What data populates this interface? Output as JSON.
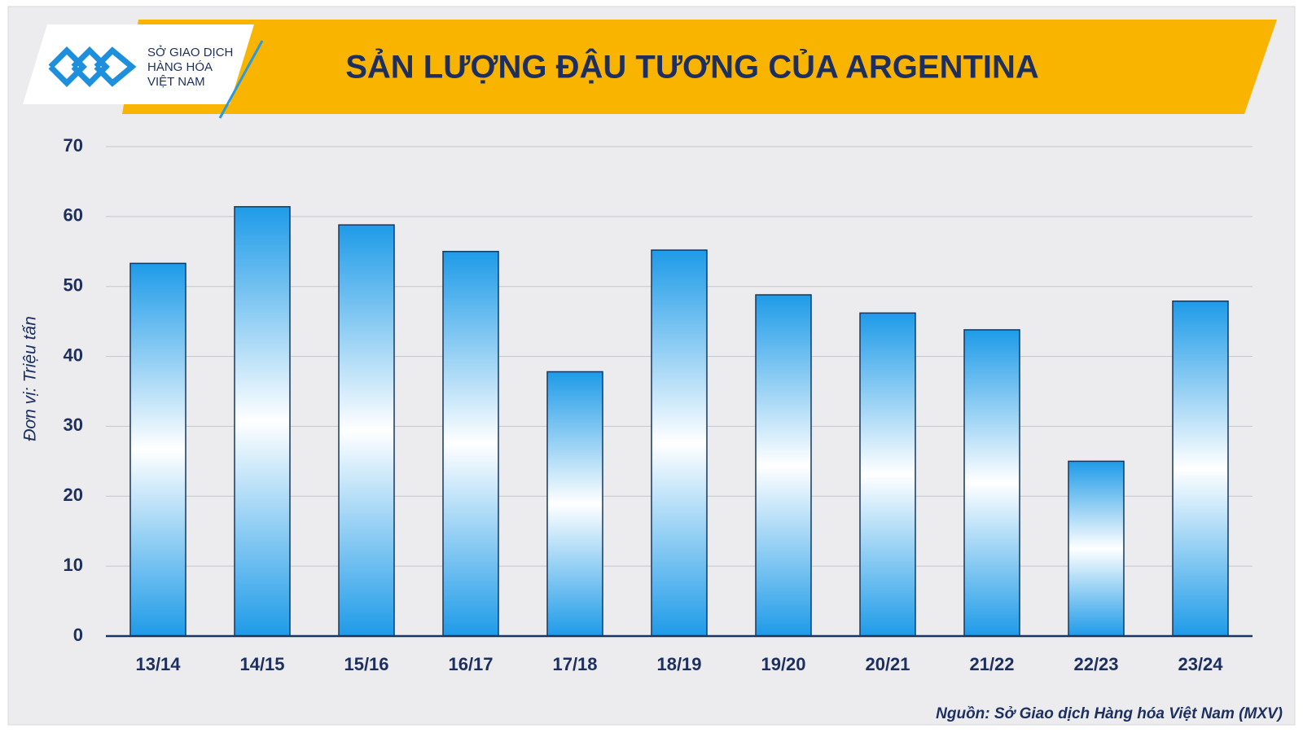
{
  "logo": {
    "lines": [
      "SỞ GIAO DỊCH",
      "HÀNG HÓA",
      "VIỆT NAM"
    ]
  },
  "chart_data": {
    "type": "bar",
    "title": "SẢN LƯỢNG ĐẬU TƯƠNG CỦA ARGENTINA",
    "y_label": "Đơn vị: Triệu tấn",
    "source": "Nguồn: Sở Giao dịch Hàng hóa Việt Nam (MXV)",
    "categories": [
      "13/14",
      "14/15",
      "15/16",
      "16/17",
      "17/18",
      "18/19",
      "19/20",
      "20/21",
      "21/22",
      "22/23",
      "23/24"
    ],
    "values": [
      53.3,
      61.4,
      58.8,
      55,
      37.8,
      55.2,
      48.8,
      46.2,
      43.8,
      25,
      47.9
    ],
    "color": "#1e9be8",
    "ylim": [
      0,
      70
    ],
    "yticks": [
      0,
      10,
      20,
      30,
      40,
      50,
      60,
      70
    ],
    "grid": true
  }
}
